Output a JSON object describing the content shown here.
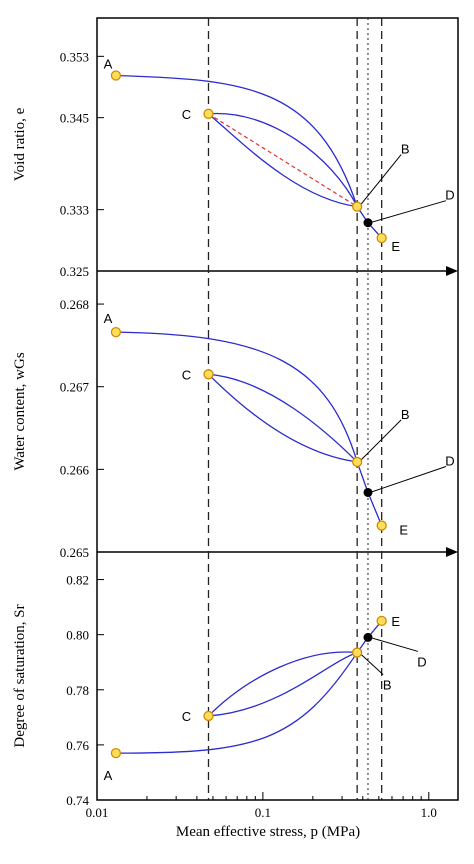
{
  "chart_data": {
    "type": "scatter",
    "x_axis": {
      "label": "Mean effective stress, p (MPa)",
      "scale": "log",
      "range": [
        0.01,
        1.5
      ],
      "ticks": [
        0.01,
        0.1,
        1.0
      ],
      "tick_labels": [
        "0.01",
        "0.1",
        "1.0"
      ]
    },
    "vertical_reference_lines": [
      {
        "x": 0.047,
        "style": "dashed"
      },
      {
        "x": 0.37,
        "style": "dashed"
      },
      {
        "x": 0.43,
        "style": "dotted"
      },
      {
        "x": 0.52,
        "style": "dashed"
      }
    ],
    "panels": [
      {
        "ylabel": "Void ratio, e",
        "ylim": [
          0.325,
          0.358
        ],
        "yticks": [
          0.325,
          0.333,
          0.345,
          0.353
        ],
        "ytick_labels": [
          "0.325",
          "0.333",
          "0.345",
          "0.353"
        ],
        "points": [
          {
            "label": "A",
            "x": 0.013,
            "y": 0.3505,
            "marker": "open"
          },
          {
            "label": "C",
            "x": 0.047,
            "y": 0.3455,
            "marker": "open"
          },
          {
            "label": "B",
            "x": 0.37,
            "y": 0.3334,
            "marker": "open"
          },
          {
            "label": "D",
            "x": 0.43,
            "y": 0.3313,
            "marker": "filled"
          },
          {
            "label": "E",
            "x": 0.52,
            "y": 0.3293,
            "marker": "open"
          }
        ]
      },
      {
        "ylabel": "Water content, wGs",
        "ylim": [
          0.265,
          0.2684
        ],
        "yticks": [
          0.265,
          0.266,
          0.267,
          0.268
        ],
        "ytick_labels": [
          "0.265",
          "0.266",
          "0.267",
          "0.268"
        ],
        "points": [
          {
            "label": "A",
            "x": 0.013,
            "y": 0.26766,
            "marker": "open"
          },
          {
            "label": "C",
            "x": 0.047,
            "y": 0.26715,
            "marker": "open"
          },
          {
            "label": "B",
            "x": 0.37,
            "y": 0.26609,
            "marker": "open"
          },
          {
            "label": "D",
            "x": 0.43,
            "y": 0.26572,
            "marker": "filled"
          },
          {
            "label": "E",
            "x": 0.52,
            "y": 0.26532,
            "marker": "open"
          }
        ]
      },
      {
        "ylabel": "Degree of saturation, Sr",
        "ylim": [
          0.74,
          0.83
        ],
        "yticks": [
          0.74,
          0.76,
          0.78,
          0.8,
          0.82
        ],
        "ytick_labels": [
          "0.74",
          "0.76",
          "0.78",
          "0.80",
          "0.82"
        ],
        "points": [
          {
            "label": "A",
            "x": 0.013,
            "y": 0.757,
            "marker": "open"
          },
          {
            "label": "C",
            "x": 0.047,
            "y": 0.7705,
            "marker": "open"
          },
          {
            "label": "B",
            "x": 0.37,
            "y": 0.7935,
            "marker": "open"
          },
          {
            "label": "D",
            "x": 0.43,
            "y": 0.799,
            "marker": "filled"
          },
          {
            "label": "E",
            "x": 0.52,
            "y": 0.805,
            "marker": "open"
          }
        ]
      }
    ]
  },
  "colors": {
    "curve": "#2b2bd0",
    "red_dashed": "#e03030",
    "open_marker_fill": "#ffdf5a",
    "open_marker_stroke": "#d28a00",
    "filled_marker": "#000000"
  }
}
